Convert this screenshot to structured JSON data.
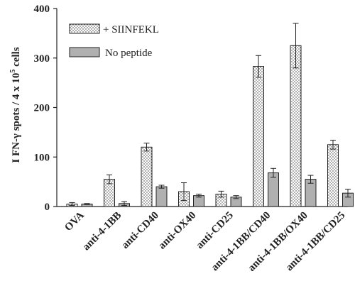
{
  "chart_data": {
    "type": "bar",
    "ylabel_parts": {
      "prefix": "I FN-",
      "gamma": "γ",
      "middle": " spots / 4 x 10",
      "superscript": "5",
      "suffix": " cells"
    },
    "ylim": [
      0,
      400
    ],
    "yticks": [
      "0",
      "100",
      "200",
      "300",
      "400"
    ],
    "ytick_values": [
      0,
      100,
      200,
      300,
      400
    ],
    "categories": [
      "OVA",
      "anti-4-1BB",
      "anti-CD40",
      "anti-OX40",
      "anti-CD25",
      "anti-4-1BB/CD40",
      "anti-4-1BB/OX40",
      "anti-4-1BB/CD25"
    ],
    "series": [
      {
        "name": "+ SIINFEKL",
        "pattern": "dotted",
        "values": [
          5,
          55,
          120,
          30,
          25,
          283,
          325,
          125
        ],
        "errors": [
          3,
          9,
          8,
          18,
          6,
          22,
          45,
          9
        ]
      },
      {
        "name": "No peptide",
        "pattern": "gray",
        "values": [
          5,
          6,
          40,
          22,
          19,
          68,
          55,
          27
        ],
        "errors": [
          1,
          4,
          3,
          3,
          3,
          9,
          8,
          8
        ]
      }
    ],
    "legend_position": "top-left",
    "grid": false,
    "colors": {
      "gray_fill": "#b0b0b0",
      "dot": "#3a3a3a",
      "stroke": "#222222"
    }
  }
}
